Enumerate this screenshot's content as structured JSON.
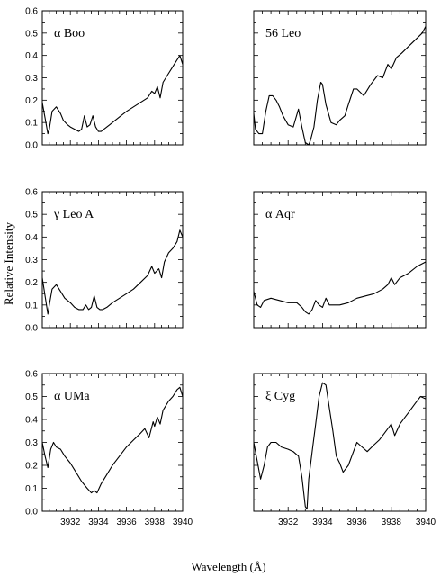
{
  "figure": {
    "ylabel": "Relative Intensity",
    "xlabel": "Wavelength (Å)"
  },
  "chart_data": [
    {
      "type": "line",
      "title": "α Boo",
      "xlim": [
        3930,
        3940
      ],
      "ylim": [
        0,
        0.6
      ],
      "yticks": [
        "0.0",
        "0.1",
        "0.2",
        "0.3",
        "0.4",
        "0.5",
        "0.6"
      ],
      "xticks": [],
      "x": [
        3930.0,
        3930.2,
        3930.4,
        3930.5,
        3930.7,
        3931.0,
        3931.3,
        3931.5,
        3931.8,
        3932.0,
        3932.3,
        3932.6,
        3932.8,
        3933.0,
        3933.2,
        3933.4,
        3933.6,
        3933.8,
        3934.0,
        3934.2,
        3934.4,
        3934.8,
        3935.2,
        3935.6,
        3936.0,
        3936.5,
        3937.0,
        3937.5,
        3937.8,
        3938.0,
        3938.2,
        3938.4,
        3938.6,
        3938.8,
        3939.0,
        3939.2,
        3939.5,
        3939.8,
        3940.0
      ],
      "y": [
        0.19,
        0.12,
        0.05,
        0.07,
        0.15,
        0.17,
        0.14,
        0.11,
        0.09,
        0.08,
        0.07,
        0.06,
        0.07,
        0.13,
        0.08,
        0.09,
        0.13,
        0.08,
        0.06,
        0.06,
        0.07,
        0.09,
        0.11,
        0.13,
        0.15,
        0.17,
        0.19,
        0.21,
        0.24,
        0.23,
        0.26,
        0.21,
        0.28,
        0.3,
        0.32,
        0.34,
        0.37,
        0.4,
        0.36
      ]
    },
    {
      "type": "line",
      "title": "56 Leo",
      "xlim": [
        3930,
        3940
      ],
      "ylim": [
        0,
        0.6
      ],
      "yticks": [],
      "xticks": [],
      "x": [
        3930.0,
        3930.1,
        3930.3,
        3930.5,
        3930.7,
        3930.9,
        3931.1,
        3931.3,
        3931.5,
        3931.7,
        3932.0,
        3932.3,
        3932.6,
        3932.8,
        3933.0,
        3933.2,
        3933.3,
        3933.5,
        3933.7,
        3933.9,
        3934.0,
        3934.2,
        3934.5,
        3934.8,
        3935.0,
        3935.3,
        3935.5,
        3935.8,
        3936.0,
        3936.4,
        3936.8,
        3937.2,
        3937.5,
        3937.8,
        3938.0,
        3938.3,
        3938.6,
        3939.0,
        3939.4,
        3939.8,
        3940.0
      ],
      "y": [
        0.14,
        0.07,
        0.05,
        0.05,
        0.15,
        0.22,
        0.22,
        0.2,
        0.17,
        0.13,
        0.09,
        0.08,
        0.16,
        0.08,
        0.01,
        0.0,
        0.02,
        0.08,
        0.2,
        0.28,
        0.27,
        0.18,
        0.1,
        0.09,
        0.11,
        0.13,
        0.18,
        0.25,
        0.25,
        0.22,
        0.27,
        0.31,
        0.3,
        0.36,
        0.34,
        0.39,
        0.41,
        0.44,
        0.47,
        0.5,
        0.53
      ]
    },
    {
      "type": "line",
      "title": "γ Leo A",
      "xlim": [
        3930,
        3940
      ],
      "ylim": [
        0,
        0.6
      ],
      "yticks": [
        "0.0",
        "0.1",
        "0.2",
        "0.3",
        "0.4",
        "0.5",
        "0.6"
      ],
      "xticks": [],
      "x": [
        3930.0,
        3930.2,
        3930.4,
        3930.5,
        3930.7,
        3931.0,
        3931.3,
        3931.6,
        3932.0,
        3932.3,
        3932.6,
        3932.9,
        3933.1,
        3933.3,
        3933.5,
        3933.7,
        3933.9,
        3934.1,
        3934.3,
        3934.6,
        3935.0,
        3935.5,
        3936.0,
        3936.5,
        3937.0,
        3937.5,
        3937.8,
        3938.0,
        3938.3,
        3938.5,
        3938.7,
        3939.0,
        3939.3,
        3939.6,
        3939.8,
        3940.0
      ],
      "y": [
        0.22,
        0.14,
        0.06,
        0.1,
        0.17,
        0.19,
        0.16,
        0.13,
        0.11,
        0.09,
        0.08,
        0.08,
        0.1,
        0.08,
        0.09,
        0.14,
        0.09,
        0.08,
        0.08,
        0.09,
        0.11,
        0.13,
        0.15,
        0.17,
        0.2,
        0.23,
        0.27,
        0.24,
        0.26,
        0.22,
        0.29,
        0.33,
        0.35,
        0.38,
        0.43,
        0.4
      ]
    },
    {
      "type": "line",
      "title": "α Aqr",
      "xlim": [
        3930,
        3940
      ],
      "ylim": [
        0,
        0.6
      ],
      "yticks": [],
      "xticks": [],
      "x": [
        3930.0,
        3930.2,
        3930.4,
        3930.6,
        3931.0,
        3931.5,
        3932.0,
        3932.5,
        3932.8,
        3933.0,
        3933.2,
        3933.4,
        3933.6,
        3933.8,
        3934.0,
        3934.2,
        3934.4,
        3934.6,
        3935.0,
        3935.5,
        3936.0,
        3936.5,
        3937.0,
        3937.5,
        3937.8,
        3938.0,
        3938.2,
        3938.5,
        3939.0,
        3939.5,
        3940.0
      ],
      "y": [
        0.16,
        0.1,
        0.09,
        0.12,
        0.13,
        0.12,
        0.11,
        0.11,
        0.09,
        0.07,
        0.06,
        0.08,
        0.12,
        0.1,
        0.09,
        0.13,
        0.1,
        0.1,
        0.1,
        0.11,
        0.13,
        0.14,
        0.15,
        0.17,
        0.19,
        0.22,
        0.19,
        0.22,
        0.24,
        0.27,
        0.29
      ]
    },
    {
      "type": "line",
      "title": "α UMa",
      "xlim": [
        3930,
        3940
      ],
      "ylim": [
        0,
        0.6
      ],
      "yticks": [
        "0.0",
        "0.1",
        "0.2",
        "0.3",
        "0.4",
        "0.5",
        "0.6"
      ],
      "xticks": [
        "3932",
        "3934",
        "3936",
        "3938",
        "3940"
      ],
      "x": [
        3930.0,
        3930.2,
        3930.4,
        3930.6,
        3930.8,
        3931.0,
        3931.3,
        3931.6,
        3932.0,
        3932.4,
        3932.8,
        3933.2,
        3933.5,
        3933.7,
        3933.9,
        3934.2,
        3934.6,
        3935.0,
        3935.5,
        3936.0,
        3936.5,
        3937.0,
        3937.3,
        3937.6,
        3937.9,
        3938.0,
        3938.2,
        3938.4,
        3938.6,
        3938.8,
        3939.0,
        3939.3,
        3939.6,
        3939.8,
        3940.0
      ],
      "y": [
        0.3,
        0.24,
        0.19,
        0.27,
        0.3,
        0.28,
        0.27,
        0.24,
        0.21,
        0.17,
        0.13,
        0.1,
        0.08,
        0.09,
        0.08,
        0.12,
        0.16,
        0.2,
        0.24,
        0.28,
        0.31,
        0.34,
        0.36,
        0.32,
        0.39,
        0.37,
        0.41,
        0.38,
        0.44,
        0.46,
        0.48,
        0.5,
        0.53,
        0.54,
        0.5
      ]
    },
    {
      "type": "line",
      "title": "ξ Cyg",
      "xlim": [
        3930,
        3940
      ],
      "ylim": [
        0,
        0.6
      ],
      "yticks": [],
      "xticks": [
        "3932",
        "3934",
        "3936",
        "3938",
        "3940"
      ],
      "x": [
        3930.0,
        3930.2,
        3930.4,
        3930.6,
        3930.8,
        3931.0,
        3931.3,
        3931.6,
        3932.0,
        3932.3,
        3932.6,
        3932.8,
        3933.0,
        3933.1,
        3933.2,
        3933.4,
        3933.6,
        3933.8,
        3934.0,
        3934.2,
        3934.4,
        3934.6,
        3934.8,
        3935.0,
        3935.2,
        3935.5,
        3935.8,
        3936.0,
        3936.3,
        3936.6,
        3937.0,
        3937.3,
        3937.6,
        3938.0,
        3938.2,
        3938.5,
        3938.8,
        3939.0,
        3939.4,
        3939.7,
        3940.0
      ],
      "y": [
        0.3,
        0.22,
        0.14,
        0.2,
        0.28,
        0.3,
        0.3,
        0.28,
        0.27,
        0.26,
        0.24,
        0.15,
        0.02,
        0.01,
        0.14,
        0.26,
        0.38,
        0.5,
        0.56,
        0.55,
        0.45,
        0.35,
        0.24,
        0.21,
        0.17,
        0.2,
        0.26,
        0.3,
        0.28,
        0.26,
        0.29,
        0.31,
        0.34,
        0.38,
        0.33,
        0.38,
        0.41,
        0.43,
        0.47,
        0.5,
        0.49
      ]
    }
  ]
}
